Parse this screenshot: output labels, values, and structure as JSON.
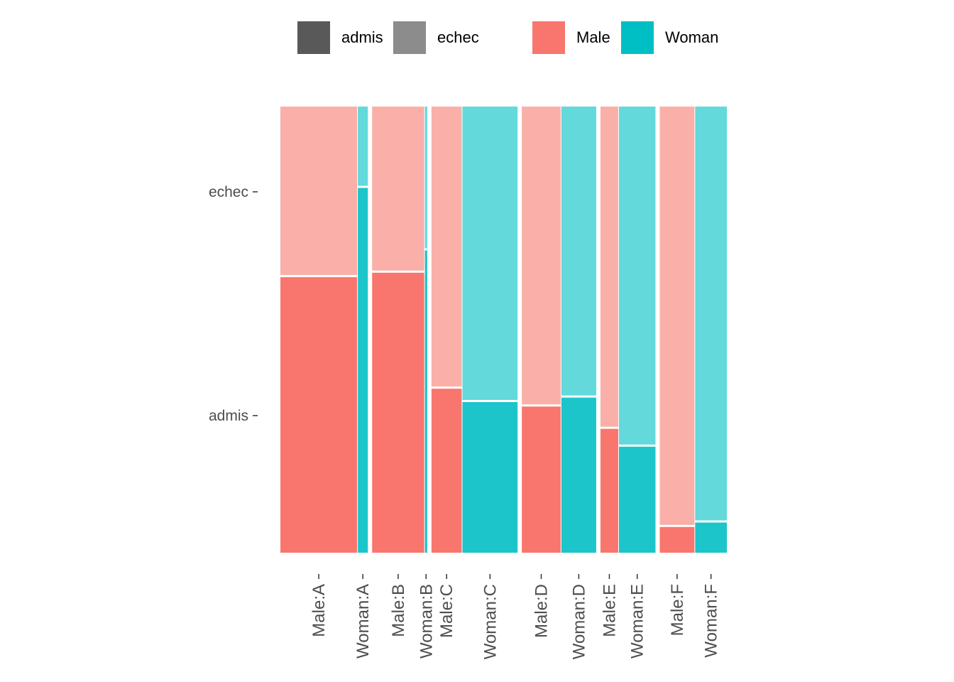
{
  "legend": {
    "fill_entries": [
      {
        "label": "admis",
        "color": "#595959"
      },
      {
        "label": "echec",
        "color": "#8c8c8c"
      }
    ],
    "color_entries": [
      {
        "label": "Male",
        "color": "#F8766D"
      },
      {
        "label": "Woman",
        "color": "#00BFC4"
      }
    ]
  },
  "chart_data": {
    "type": "mosaic",
    "title": "",
    "xlabel": "",
    "ylabel": "",
    "y_categories": [
      "admis",
      "echec"
    ],
    "x_categories": [
      "Male:A",
      "Woman:A",
      "Male:B",
      "Woman:B",
      "Male:C",
      "Woman:C",
      "Male:D",
      "Woman:D",
      "Male:E",
      "Woman:E",
      "Male:F",
      "Woman:F"
    ],
    "departments": [
      "A",
      "B",
      "C",
      "D",
      "E",
      "F"
    ],
    "cells": [
      {
        "label": "Male:A",
        "sex": "Male",
        "dept": "A",
        "count": 825,
        "admis_prop": 0.62
      },
      {
        "label": "Woman:A",
        "sex": "Woman",
        "dept": "A",
        "count": 108,
        "admis_prop": 0.82
      },
      {
        "label": "Male:B",
        "sex": "Male",
        "dept": "B",
        "count": 560,
        "admis_prop": 0.63
      },
      {
        "label": "Woman:B",
        "sex": "Woman",
        "dept": "B",
        "count": 25,
        "admis_prop": 0.68
      },
      {
        "label": "Male:C",
        "sex": "Male",
        "dept": "C",
        "count": 325,
        "admis_prop": 0.37
      },
      {
        "label": "Woman:C",
        "sex": "Woman",
        "dept": "C",
        "count": 593,
        "admis_prop": 0.34
      },
      {
        "label": "Male:D",
        "sex": "Male",
        "dept": "D",
        "count": 417,
        "admis_prop": 0.33
      },
      {
        "label": "Woman:D",
        "sex": "Woman",
        "dept": "D",
        "count": 375,
        "admis_prop": 0.35
      },
      {
        "label": "Male:E",
        "sex": "Male",
        "dept": "E",
        "count": 191,
        "admis_prop": 0.28
      },
      {
        "label": "Woman:E",
        "sex": "Woman",
        "dept": "E",
        "count": 393,
        "admis_prop": 0.24
      },
      {
        "label": "Male:F",
        "sex": "Male",
        "dept": "F",
        "count": 373,
        "admis_prop": 0.06
      },
      {
        "label": "Woman:F",
        "sex": "Woman",
        "dept": "F",
        "count": 341,
        "admis_prop": 0.07
      }
    ],
    "colors": {
      "Male": {
        "admis": "#F8766D",
        "echec": "#FAAFA9"
      },
      "Woman": {
        "admis": "#1CC5C9",
        "echec": "#63D9DB"
      }
    },
    "grid": false,
    "legend_position": "top"
  }
}
